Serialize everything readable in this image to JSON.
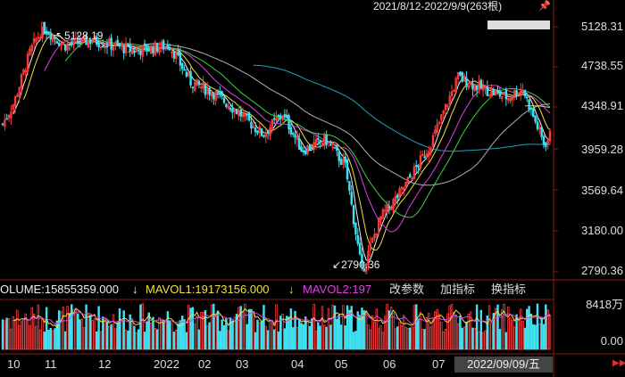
{
  "header": {
    "range": "2021/8/12-2022/9/9(263根)",
    "pin_icon": "pin-icon"
  },
  "annotations": {
    "high": "5128.19",
    "low": "2790.36"
  },
  "yaxis": [
    "5128.31",
    "4738.55",
    "4348.91",
    "3959.28",
    "3569.64",
    "3180.00",
    "2790.36"
  ],
  "volume_axis": [
    "8418万",
    "0.00"
  ],
  "volume_bar": {
    "volume": "OLUME:15855359.000",
    "mavol1": "MAVOL1:19173156.000",
    "mavol2": "MAVOL2:197",
    "down1": "↓",
    "down2": "↓",
    "buttons": [
      "改参数",
      "加指标",
      "换指标"
    ]
  },
  "xaxis": [
    "10",
    "11",
    "12",
    "2022",
    "02",
    "03",
    "04",
    "05",
    "06",
    "07"
  ],
  "cursor_date": "2022/09/09/五",
  "colors": {
    "up": "#ff3b3b",
    "down": "#40e0f0",
    "ma_white": "#f0f0f0",
    "ma_yellow": "#f0e040",
    "ma_magenta": "#e040e0",
    "ma_green": "#40d040",
    "ma_gray": "#b0b0b0",
    "ma_cyan": "#20a0c0",
    "ma_tan": "#d8c888",
    "axis": "#8b1a1a"
  },
  "chart_data": {
    "type": "candlestick",
    "ylim": [
      2790.36,
      5128.31
    ],
    "anchors": [
      [
        "2021-08-12",
        4200
      ],
      [
        "2021-08-20",
        4400
      ],
      [
        "2021-09-01",
        4900
      ],
      [
        "2021-09-10",
        5128.19
      ],
      [
        "2021-09-25",
        4950
      ],
      [
        "2021-10-15",
        5000
      ],
      [
        "2021-11-15",
        4900
      ],
      [
        "2021-12-10",
        4950
      ],
      [
        "2021-12-25",
        4600
      ],
      [
        "2022-01-10",
        4500
      ],
      [
        "2022-01-25",
        4350
      ],
      [
        "2022-02-15",
        4100
      ],
      [
        "2022-03-01",
        4300
      ],
      [
        "2022-03-15",
        3950
      ],
      [
        "2022-04-01",
        4050
      ],
      [
        "2022-04-15",
        3800
      ],
      [
        "2022-04-27",
        2790.36
      ],
      [
        "2022-05-10",
        3300
      ],
      [
        "2022-05-25",
        3550
      ],
      [
        "2022-06-15",
        4000
      ],
      [
        "2022-07-05",
        4650
      ],
      [
        "2022-07-20",
        4550
      ],
      [
        "2022-08-10",
        4450
      ],
      [
        "2022-08-20",
        4550
      ],
      [
        "2022-09-05",
        4000
      ],
      [
        "2022-09-09",
        4090
      ]
    ]
  }
}
